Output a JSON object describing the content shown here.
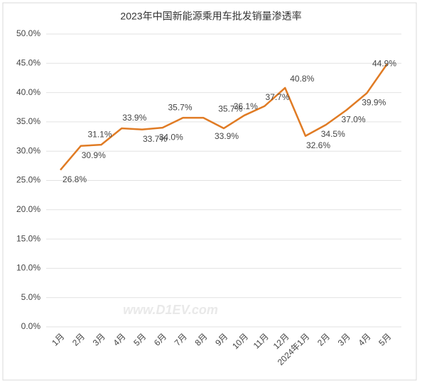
{
  "chart_data": {
    "type": "line",
    "title": "2023年中国新能源乘用车批发销量渗透率",
    "categories": [
      "1月",
      "2月",
      "3月",
      "4月",
      "5月",
      "6月",
      "7月",
      "8月",
      "9月",
      "10月",
      "11月",
      "12月",
      "2024年1月",
      "2月",
      "3月",
      "4月",
      "5月"
    ],
    "series": [
      {
        "name": "渗透率",
        "color": "#e07b24",
        "values": [
          26.8,
          30.9,
          31.1,
          33.9,
          33.7,
          34.0,
          35.7,
          35.7,
          33.9,
          36.1,
          37.7,
          40.8,
          32.6,
          34.5,
          37.0,
          39.9,
          44.9
        ],
        "value_labels": [
          "26.8%",
          "30.9%",
          "31.1%",
          "33.9%",
          "33.7%",
          "34.0%",
          "35.7%",
          "35.7%",
          "33.9%",
          "36.1%",
          "37.7%",
          "40.8%",
          "32.6%",
          "34.5%",
          "37.0%",
          "39.9%",
          "44.9%"
        ]
      }
    ],
    "ylim": [
      0,
      50
    ],
    "yticks": [
      {
        "value": 0,
        "label": "0.0%"
      },
      {
        "value": 5,
        "label": "5.0%"
      },
      {
        "value": 10,
        "label": "10.0%"
      },
      {
        "value": 15,
        "label": "15.0%"
      },
      {
        "value": 20,
        "label": "20.0%"
      },
      {
        "value": 25,
        "label": "25.0%"
      },
      {
        "value": 30,
        "label": "30.0%"
      },
      {
        "value": 35,
        "label": "35.0%"
      },
      {
        "value": 40,
        "label": "40.0%"
      },
      {
        "value": 45,
        "label": "45.0%"
      },
      {
        "value": 50,
        "label": "50.0%"
      }
    ],
    "grid": true,
    "watermark": "www.D1EV.com"
  }
}
